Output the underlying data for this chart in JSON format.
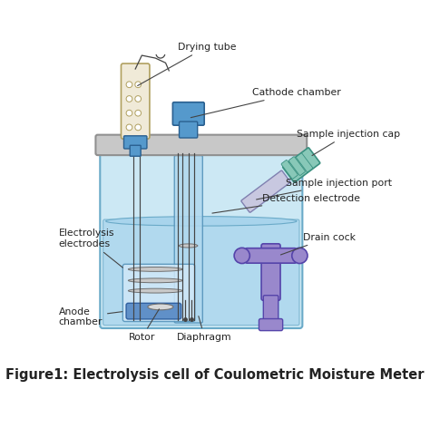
{
  "title": "Figure1: Electrolysis cell of Coulometric Moisture Meter",
  "title_fontsize": 10.5,
  "bg_color": "#ffffff",
  "labels": {
    "drying_tube": "Drying tube",
    "cathode_chamber": "Cathode chamber",
    "sample_injection_cap": "Sample injection cap",
    "sample_injection_port": "Sample injection port",
    "detection_electrode": "Detection electrode",
    "drain_cock": "Drain cock",
    "electrolysis_electrodes": "Electrolysis\nelectrodes",
    "anode_chamber": "Anode\nchamber",
    "rotor": "Rotor",
    "diaphragm": "Diaphragm"
  },
  "colors": {
    "outer_vessel_fill": "#cce8f4",
    "outer_vessel_edge": "#6aaac8",
    "liquid_fill": "#a8d4ec",
    "liquid_edge": "#6aaac8",
    "cathode_fill": "#b0d8ef",
    "cathode_edge": "#5090b8",
    "lid_fill": "#c8c8c8",
    "lid_edge": "#909090",
    "drying_tube_fill": "#f0ead8",
    "drying_tube_edge": "#b0a060",
    "blue_conn_fill": "#5599cc",
    "blue_conn_edge": "#2a6090",
    "electrode_fill": "#c8c8c8",
    "electrode_edge": "#707070",
    "anode_box_fill": "#d0e8f8",
    "anode_box_edge": "#5090b8",
    "anode_cyl_fill": "#6090c8",
    "anode_cyl_edge": "#3060a0",
    "cap_fill": "#88c8b8",
    "cap_edge": "#3a9080",
    "port_fill": "#c8c8e0",
    "port_edge": "#8080b0",
    "drain_fill": "#9988cc",
    "drain_edge": "#5544aa",
    "wire_color": "#444444",
    "text_color": "#222222",
    "arrow_color": "#444444"
  }
}
